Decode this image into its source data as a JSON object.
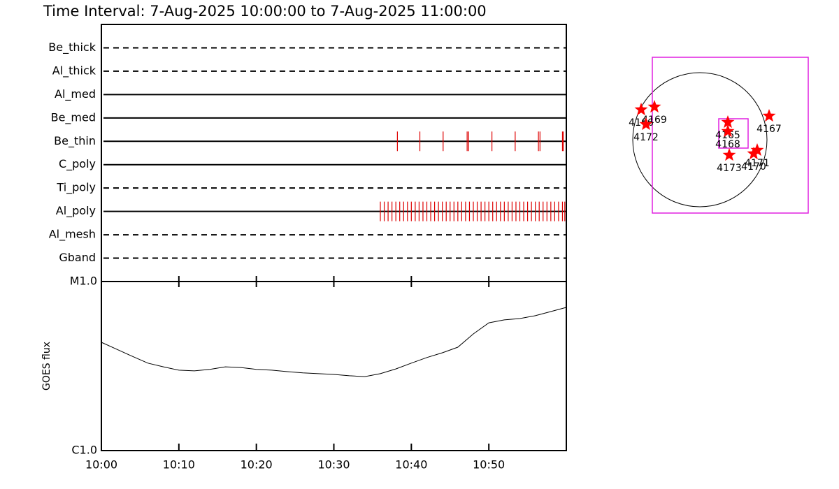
{
  "chart_data": [
    {
      "type": "timeline",
      "title": "Time Interval:  7-Aug-2025 10:00:00 to  7-Aug-2025 11:00:00",
      "categories": [
        "Be_thick",
        "Al_thick",
        "Al_med",
        "Be_med",
        "Be_thin",
        "C_poly",
        "Ti_poly",
        "Al_poly",
        "Al_mesh",
        "Gband"
      ],
      "line_styles": [
        "dashed",
        "dashed",
        "solid",
        "solid",
        "solid",
        "solid",
        "dashed",
        "solid",
        "dashed",
        "dashed"
      ],
      "color": "#dd0000",
      "xlim": [
        0,
        60
      ],
      "events": [
        {
          "row": 4,
          "x": [
            38.2,
            41.1,
            44.1,
            47.2,
            47.4,
            50.4,
            53.4,
            56.4,
            56.6,
            59.5,
            59.6
          ]
        },
        {
          "row": 7,
          "x": [
            36.0,
            36.5,
            37.0,
            37.5,
            38.0,
            38.5,
            39.0,
            39.5,
            40.0,
            40.5,
            41.0,
            41.5,
            42.0,
            42.5,
            43.0,
            43.5,
            44.0,
            44.5,
            45.0,
            45.5,
            46.0,
            46.5,
            47.0,
            47.5,
            48.0,
            48.5,
            49.0,
            49.5,
            50.0,
            50.5,
            51.0,
            51.5,
            52.0,
            52.5,
            53.0,
            53.5,
            54.0,
            54.5,
            55.0,
            55.5,
            56.0,
            56.5,
            57.0,
            57.5,
            58.0,
            58.5,
            59.0,
            59.5,
            59.8
          ]
        }
      ]
    },
    {
      "type": "line",
      "y_label": "GOES flux",
      "log_y": true,
      "x": [
        0,
        2,
        4,
        6,
        8,
        10,
        12,
        14,
        16,
        18,
        20,
        22,
        24,
        26,
        28,
        30,
        32,
        34,
        36,
        38,
        40,
        42,
        44,
        46,
        48,
        50,
        52,
        54,
        56,
        58,
        60
      ],
      "values": [
        4.37e-06,
        3.97e-06,
        3.61e-06,
        3.29e-06,
        3.13e-06,
        2.99e-06,
        2.96e-06,
        3.02e-06,
        3.13e-06,
        3.1e-06,
        3.02e-06,
        2.99e-06,
        2.93e-06,
        2.88e-06,
        2.85e-06,
        2.82e-06,
        2.77e-06,
        2.74e-06,
        2.85e-06,
        3.04e-06,
        3.29e-06,
        3.55e-06,
        3.79e-06,
        4.09e-06,
        4.9e-06,
        5.7e-06,
        5.93e-06,
        6.04e-06,
        6.28e-06,
        6.64e-06,
        7.03e-06
      ],
      "color": "#000000",
      "xlim": [
        0,
        60
      ],
      "xticks": [
        {
          "value": 0,
          "label": "10:00"
        },
        {
          "value": 10,
          "label": "10:10"
        },
        {
          "value": 20,
          "label": "10:20"
        },
        {
          "value": 30,
          "label": "10:30"
        },
        {
          "value": 40,
          "label": "10:40"
        },
        {
          "value": 50,
          "label": "10:50"
        }
      ],
      "ylim": [
        1e-06,
        1e-05
      ],
      "yticks": [
        {
          "value": 1e-06,
          "label": "C1.0"
        },
        {
          "value": 1e-05,
          "label": "M1.0"
        }
      ]
    },
    {
      "type": "scatter",
      "labels": [
        "4166",
        "4169",
        "4172",
        "4165",
        "4168",
        "4167",
        "4173",
        "4170",
        "4171"
      ],
      "x": [
        -840,
        -650,
        -770,
        400,
        400,
        990,
        420,
        770,
        820
      ],
      "y": [
        430,
        470,
        220,
        250,
        120,
        340,
        -220,
        -200,
        -150
      ],
      "color": "#ff0000",
      "xlim": [
        -1210,
        1790
      ],
      "ylim": [
        -1200,
        1200
      ],
      "disk_radius": 960,
      "fov": {
        "x": [
          -680,
          1550
        ],
        "y": [
          -1050,
          1180
        ]
      },
      "zoom_box": {
        "x": [
          270,
          690
        ],
        "y": [
          -120,
          300
        ]
      },
      "box_color": "#e020e0"
    }
  ]
}
